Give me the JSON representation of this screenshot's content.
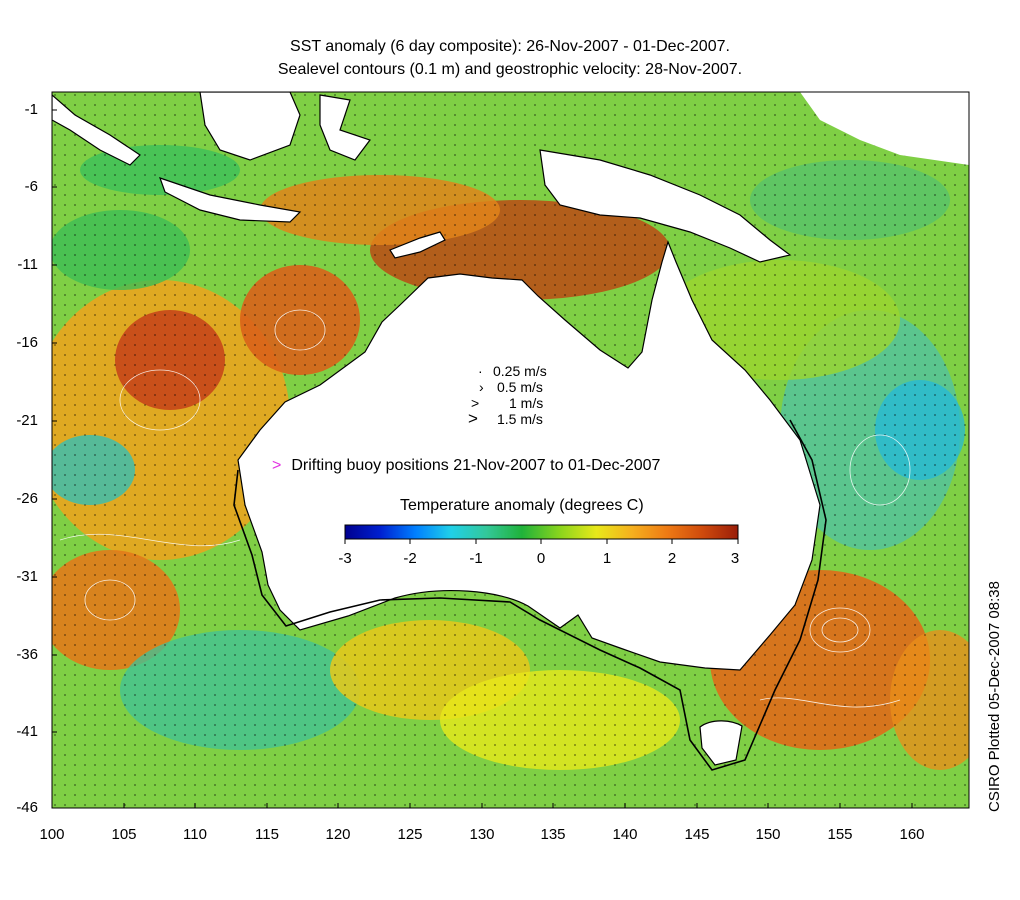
{
  "title_line1": "SST anomaly (6 day composite): 26-Nov-2007 - 01-Dec-2007.",
  "title_line2": "Sealevel contours (0.1 m) and geostrophic velocity: 28-Nov-2007.",
  "axes": {
    "lon_ticks": [
      "100",
      "105",
      "110",
      "115",
      "120",
      "125",
      "130",
      "135",
      "140",
      "145",
      "150",
      "155",
      "160"
    ],
    "lat_ticks": [
      "-1",
      "-6",
      "-11",
      "-16",
      "-21",
      "-26",
      "-31",
      "-36",
      "-41",
      "-46"
    ],
    "lon_range": [
      100,
      164
    ],
    "lat_range": [
      -46,
      0
    ]
  },
  "velocity_legend": [
    {
      "glyph": "·",
      "label": "0.25 m/s"
    },
    {
      "glyph": "›",
      "label": "0.5 m/s"
    },
    {
      "glyph": ">",
      "label": "1 m/s"
    },
    {
      "glyph": ">",
      "label": "1.5 m/s"
    }
  ],
  "buoy": {
    "marker": ">",
    "label": "Drifting buoy positions 21-Nov-2007 to 01-Dec-2007",
    "color": "#e233e2"
  },
  "colorbar": {
    "title": "Temperature anomaly (degrees C)",
    "ticks": [
      "-3",
      "-2",
      "-1",
      "0",
      "1",
      "2",
      "3"
    ],
    "range": [
      -3,
      3
    ],
    "colors": [
      "#00008f",
      "#0020d0",
      "#0080ff",
      "#20d0e8",
      "#33c89a",
      "#1fb23a",
      "#8ed61c",
      "#e8e81a",
      "#f5b01e",
      "#ee7a14",
      "#cf4a0c",
      "#9a1e0a"
    ]
  },
  "credit": "CSIRO Plotted 05-Dec-2007 08:38",
  "regions": [
    "Indonesia",
    "Sumatra",
    "Java",
    "Borneo",
    "Sulawesi",
    "New Guinea",
    "Australia",
    "Tasmania",
    "Timor"
  ]
}
